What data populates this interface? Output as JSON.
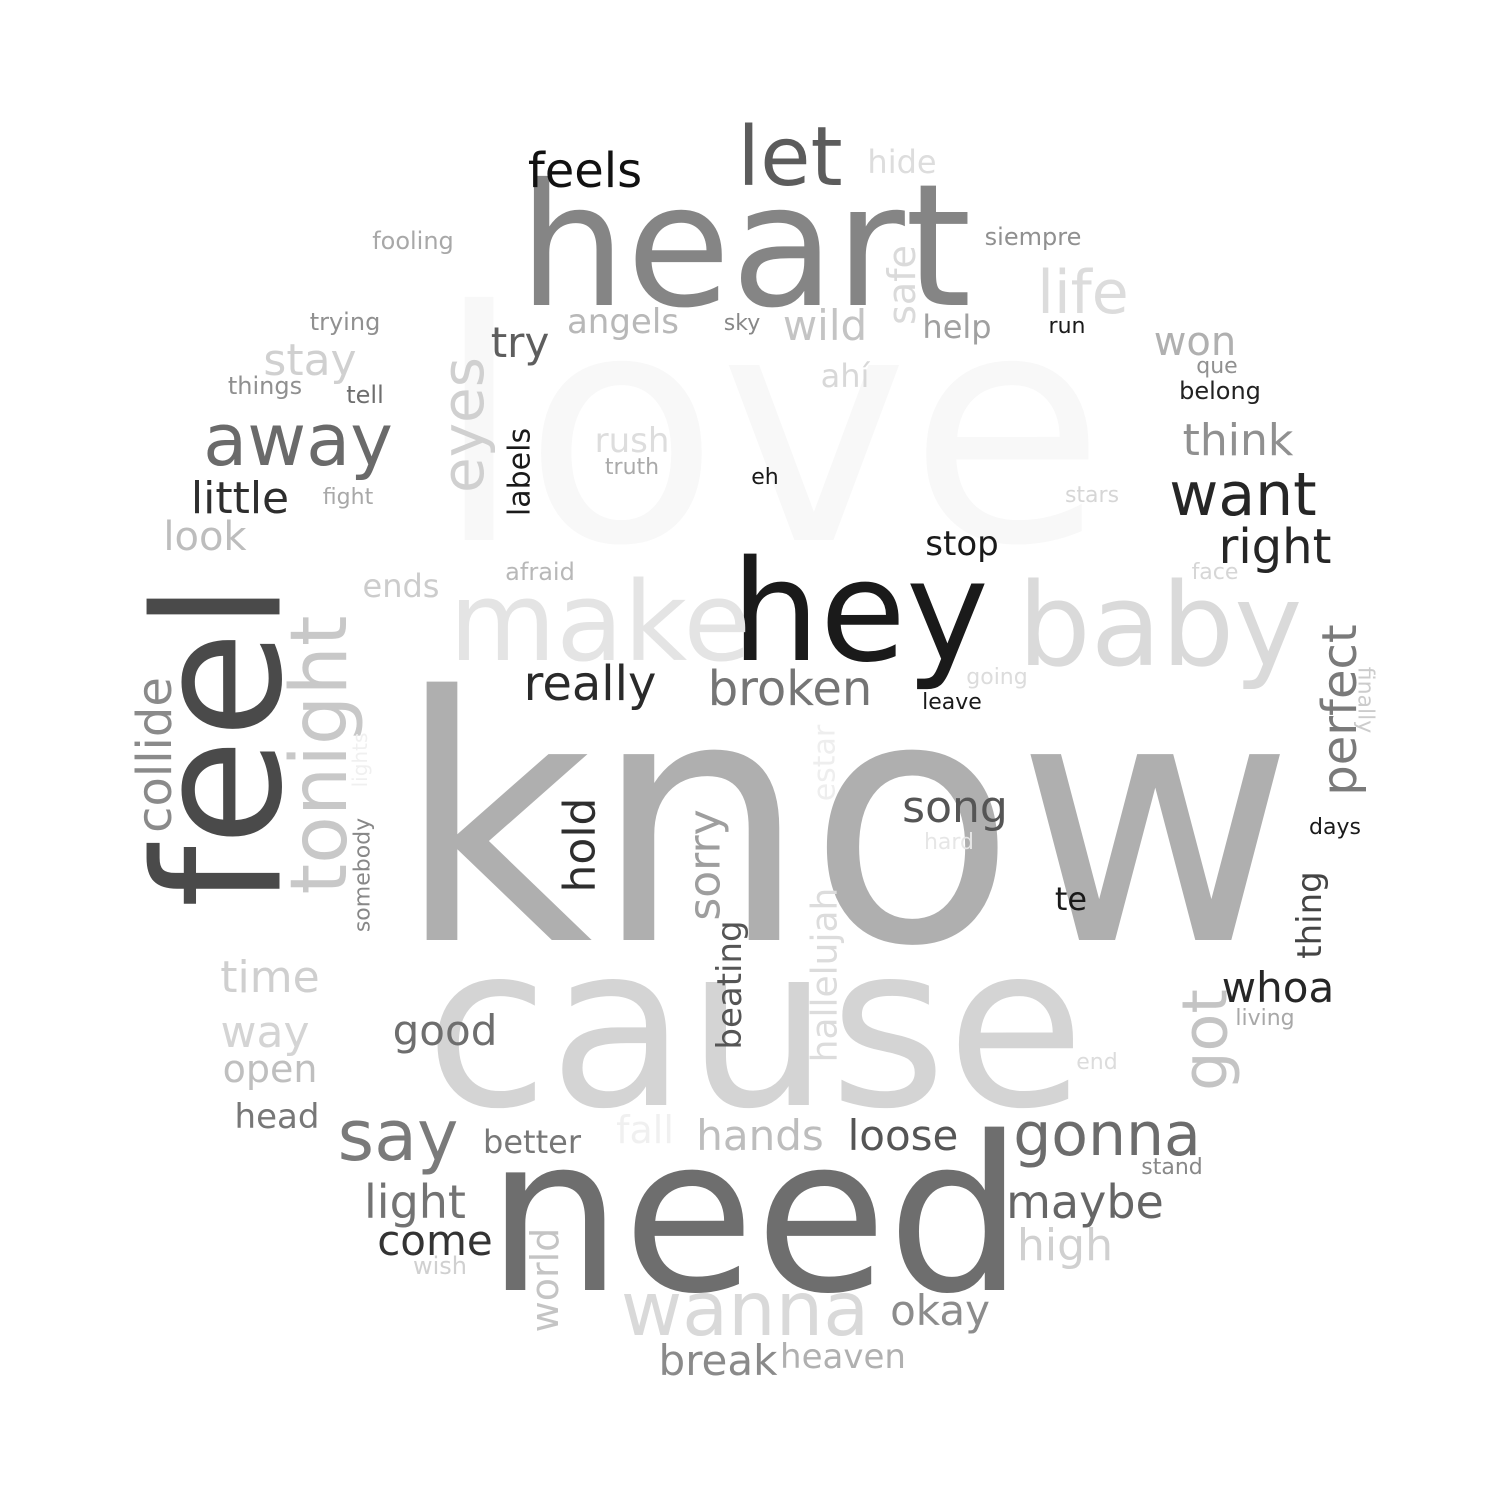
{
  "words": [
    {
      "text": "love",
      "color": "#f8f8f8"
    },
    {
      "text": "know",
      "color": "#afafaf"
    },
    {
      "text": "cause",
      "color": "#d4d4d4"
    },
    {
      "text": "need",
      "color": "#6e6e6e"
    },
    {
      "text": "heart",
      "color": "#858585"
    },
    {
      "text": "feel",
      "color": "#4a4a4a"
    },
    {
      "text": "hey",
      "color": "#1a1a1a"
    },
    {
      "text": "make",
      "color": "#e4e4e4"
    },
    {
      "text": "baby",
      "color": "#dadada"
    },
    {
      "text": "let",
      "color": "#5c5c5c"
    },
    {
      "text": "tonight",
      "color": "#c8c8c8"
    },
    {
      "text": "away",
      "color": "#6a6a6a"
    },
    {
      "text": "wanna",
      "color": "#d9d9d9"
    },
    {
      "text": "say",
      "color": "#7a7a7a"
    },
    {
      "text": "gonna",
      "color": "#6c6c6c"
    },
    {
      "text": "got",
      "color": "#c4c4c4"
    },
    {
      "text": "want",
      "color": "#262626"
    },
    {
      "text": "life",
      "color": "#dcdcdc"
    },
    {
      "text": "eyes",
      "color": "#d0d0d0"
    },
    {
      "text": "feels",
      "color": "#111111"
    },
    {
      "text": "really",
      "color": "#2a2a2a"
    },
    {
      "text": "broken",
      "color": "#757575"
    },
    {
      "text": "right",
      "color": "#262626"
    },
    {
      "text": "collide",
      "color": "#8a8a8a"
    },
    {
      "text": "perfect",
      "color": "#7a7a7a"
    },
    {
      "text": "hold",
      "color": "#2e2e2e"
    },
    {
      "text": "sorry",
      "color": "#9e9e9e"
    },
    {
      "text": "song",
      "color": "#555555"
    },
    {
      "text": "little",
      "color": "#2e2e2e"
    },
    {
      "text": "think",
      "color": "#909090"
    },
    {
      "text": "light",
      "color": "#737373"
    },
    {
      "text": "maybe",
      "color": "#666666"
    },
    {
      "text": "good",
      "color": "#6e6e6e"
    },
    {
      "text": "loose",
      "color": "#555555"
    },
    {
      "text": "break",
      "color": "#8a8a8a"
    },
    {
      "text": "hands",
      "color": "#bdbdbd"
    },
    {
      "text": "okay",
      "color": "#8c8c8c"
    },
    {
      "text": "high",
      "color": "#d0d0d0"
    },
    {
      "text": "come",
      "color": "#333333"
    },
    {
      "text": "world",
      "color": "#c4c4c4"
    },
    {
      "text": "time",
      "color": "#cfcfcf"
    },
    {
      "text": "way",
      "color": "#d4d4d4"
    },
    {
      "text": "open",
      "color": "#bfbfbf"
    },
    {
      "text": "stay",
      "color": "#d0d0d0"
    },
    {
      "text": "look",
      "color": "#bdbdbd"
    },
    {
      "text": "whoa",
      "color": "#262626"
    },
    {
      "text": "try",
      "color": "#5e5e5e"
    },
    {
      "text": "wild",
      "color": "#c4c4c4"
    },
    {
      "text": "safe",
      "color": "#dadada"
    },
    {
      "text": "angels",
      "color": "#b8b8b8"
    },
    {
      "text": "won",
      "color": "#b0b0b0"
    },
    {
      "text": "hallelujah",
      "color": "#dcdcdc"
    },
    {
      "text": "beating",
      "color": "#555555"
    },
    {
      "text": "heaven",
      "color": "#b0b0b0"
    },
    {
      "text": "better",
      "color": "#777777"
    },
    {
      "text": "labels",
      "color": "#1a1a1a"
    },
    {
      "text": "help",
      "color": "#a0a0a0"
    },
    {
      "text": "stop",
      "color": "#1a1a1a"
    },
    {
      "text": "thing",
      "color": "#444444"
    },
    {
      "text": "fall",
      "color": "#f0f0f0"
    },
    {
      "text": "rush",
      "color": "#dddddd"
    },
    {
      "text": "head",
      "color": "#777777"
    },
    {
      "text": "hide",
      "color": "#dddddd"
    },
    {
      "text": "estar",
      "color": "#eeeeee"
    },
    {
      "text": "ends",
      "color": "#cccccc"
    },
    {
      "text": "te",
      "color": "#1a1a1a"
    },
    {
      "text": "ahí",
      "color": "#d8d8d8"
    },
    {
      "text": "fooling",
      "color": "#a8a8a8"
    },
    {
      "text": "siempre",
      "color": "#909090"
    },
    {
      "text": "trying",
      "color": "#909090"
    },
    {
      "text": "afraid",
      "color": "#b8b8b8"
    },
    {
      "text": "tell",
      "color": "#6e6e6e"
    },
    {
      "text": "things",
      "color": "#909090"
    },
    {
      "text": "belong",
      "color": "#222222"
    },
    {
      "text": "wish",
      "color": "#d0d0d0"
    },
    {
      "text": "stand",
      "color": "#888888"
    },
    {
      "text": "living",
      "color": "#a8a8a8"
    },
    {
      "text": "days",
      "color": "#1a1a1a"
    },
    {
      "text": "leave",
      "color": "#1a1a1a"
    },
    {
      "text": "truth",
      "color": "#aaaaaa"
    },
    {
      "text": "somebody",
      "color": "#888888"
    },
    {
      "text": "fight",
      "color": "#a8a8a8"
    },
    {
      "text": "hard",
      "color": "#e6e6e6"
    },
    {
      "text": "end",
      "color": "#dcdcdc"
    },
    {
      "text": "going",
      "color": "#dcdcdc"
    },
    {
      "text": "finally",
      "color": "#cccccc"
    },
    {
      "text": "face",
      "color": "#d6d6d6"
    },
    {
      "text": "stars",
      "color": "#d6d6d6"
    },
    {
      "text": "sky",
      "color": "#888888"
    },
    {
      "text": "run",
      "color": "#1a1a1a"
    },
    {
      "text": "que",
      "color": "#909090"
    },
    {
      "text": "eh",
      "color": "#1a1a1a"
    },
    {
      "text": "lights",
      "color": "#f0f0f0"
    }
  ]
}
